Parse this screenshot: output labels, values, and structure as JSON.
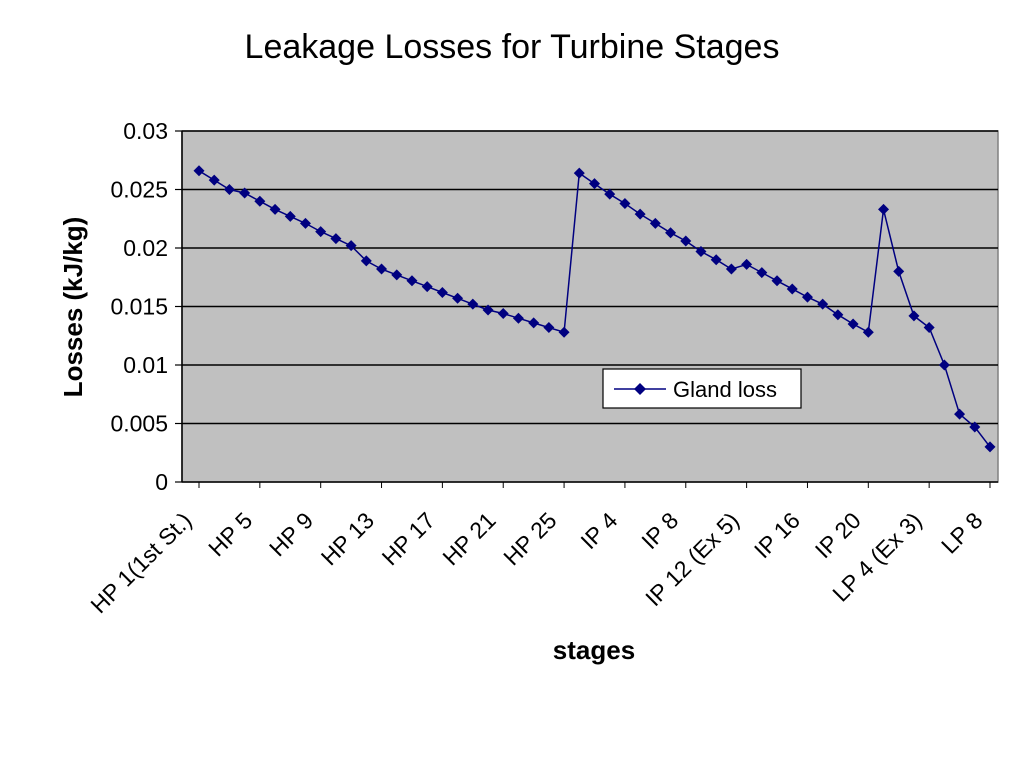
{
  "chart_data": {
    "type": "line",
    "title": "Leakage Losses for Turbine Stages",
    "xlabel": "stages",
    "ylabel": "Losses (kJ/kg)",
    "ylim": [
      0,
      0.03
    ],
    "yticks": [
      "0",
      "0.005",
      "0.01",
      "0.015",
      "0.02",
      "0.025",
      "0.03"
    ],
    "xtick_labels": [
      "HP 1(1st St.)",
      "HP 5",
      "HP 9",
      "HP 13",
      "HP 17",
      "HP 21",
      "HP 25",
      "IP 4",
      "IP 8",
      "IP 12 (Ex 5)",
      "IP 16",
      "IP 20",
      "LP 4 (Ex 3)",
      "LP 8"
    ],
    "xtick_every": 4,
    "grid": "horizontal",
    "plot_background": "#c0c0c0",
    "legend_position": "center-right inside plot",
    "series": [
      {
        "name": "Gland loss",
        "color": "#000080",
        "marker": "diamond",
        "values": [
          0.0266,
          0.0258,
          0.025,
          0.0247,
          0.024,
          0.0233,
          0.0227,
          0.0221,
          0.0214,
          0.0208,
          0.0202,
          0.0189,
          0.0182,
          0.0177,
          0.0172,
          0.0167,
          0.0162,
          0.0157,
          0.0152,
          0.0147,
          0.0144,
          0.014,
          0.0136,
          0.0132,
          0.0128,
          0.0264,
          0.0255,
          0.0246,
          0.0238,
          0.0229,
          0.0221,
          0.0213,
          0.0206,
          0.0197,
          0.019,
          0.0182,
          0.0186,
          0.0179,
          0.0172,
          0.0165,
          0.0158,
          0.0152,
          0.0143,
          0.0135,
          0.0128,
          0.0233,
          0.018,
          0.0142,
          0.0132,
          0.01,
          0.0058,
          0.0047,
          0.003
        ]
      }
    ]
  }
}
